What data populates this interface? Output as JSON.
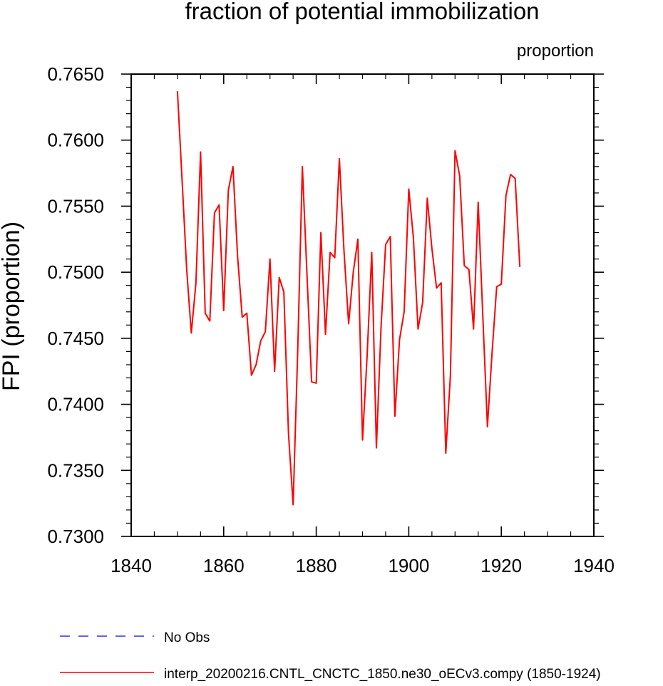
{
  "chart_data": {
    "type": "line",
    "title": "fraction of potential immobilization",
    "units_label": "proportion",
    "ylabel": "FPI  (proportion)",
    "xlabel": "",
    "xlim": [
      1840,
      1940
    ],
    "ylim": [
      0.73,
      0.765
    ],
    "x_ticks": [
      1840,
      1860,
      1880,
      1900,
      1920,
      1940
    ],
    "x_tick_labels": [
      "1840",
      "1860",
      "1880",
      "1900",
      "1920",
      "1940"
    ],
    "y_ticks": [
      0.73,
      0.735,
      0.74,
      0.745,
      0.75,
      0.755,
      0.76,
      0.765
    ],
    "y_tick_labels": [
      "0.7300",
      "0.7350",
      "0.7400",
      "0.7450",
      "0.7500",
      "0.7550",
      "0.7600",
      "0.7650"
    ],
    "series": [
      {
        "name": "interp_20200216.CNTL_CNCTC_1850.ne30_oECv3.compy (1850-1924)",
        "color": "#ff0000",
        "style": "solid",
        "x": [
          1850,
          1851,
          1852,
          1853,
          1854,
          1855,
          1856,
          1857,
          1858,
          1859,
          1860,
          1861,
          1862,
          1863,
          1864,
          1865,
          1866,
          1867,
          1868,
          1869,
          1870,
          1871,
          1872,
          1873,
          1874,
          1875,
          1876,
          1877,
          1878,
          1879,
          1880,
          1881,
          1882,
          1883,
          1884,
          1885,
          1886,
          1887,
          1888,
          1889,
          1890,
          1891,
          1892,
          1893,
          1894,
          1895,
          1896,
          1897,
          1898,
          1899,
          1900,
          1901,
          1902,
          1903,
          1904,
          1905,
          1906,
          1907,
          1908,
          1909,
          1910,
          1911,
          1912,
          1913,
          1914,
          1915,
          1916,
          1917,
          1918,
          1919,
          1920,
          1921,
          1922,
          1923,
          1924
        ],
        "values": [
          0.7637,
          0.757,
          0.7502,
          0.7454,
          0.7492,
          0.7591,
          0.7469,
          0.7463,
          0.7545,
          0.7551,
          0.7471,
          0.7562,
          0.758,
          0.7512,
          0.7466,
          0.7469,
          0.7422,
          0.743,
          0.7448,
          0.7455,
          0.751,
          0.7425,
          0.7496,
          0.7485,
          0.7378,
          0.7324,
          0.7441,
          0.758,
          0.7498,
          0.7417,
          0.7416,
          0.753,
          0.7453,
          0.7515,
          0.7511,
          0.7586,
          0.7516,
          0.7461,
          0.75,
          0.7525,
          0.7373,
          0.7437,
          0.7515,
          0.7367,
          0.7458,
          0.7521,
          0.7527,
          0.7391,
          0.7449,
          0.747,
          0.7563,
          0.7526,
          0.7457,
          0.7477,
          0.7556,
          0.7518,
          0.7488,
          0.7492,
          0.7363,
          0.7422,
          0.7592,
          0.7573,
          0.7505,
          0.7502,
          0.7457,
          0.7553,
          0.7467,
          0.7383,
          0.7439,
          0.7489,
          0.7491,
          0.7558,
          0.7574,
          0.7571,
          0.7504
        ]
      },
      {
        "name": "No Obs",
        "color": "#0000ff",
        "style": "dashed",
        "x": [],
        "values": []
      }
    ],
    "legend_position": "bottom-left",
    "grid": false
  }
}
